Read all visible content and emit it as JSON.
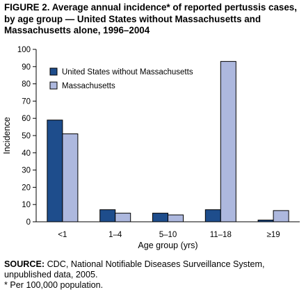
{
  "figure": {
    "title": "FIGURE 2. Average annual incidence* of reported pertussis cases, by age group — United States without Massachusetts and Massachusetts alone, 1996–2004",
    "source_label": "SOURCE:",
    "source_text": "CDC, National Notifiable Diseases Surveillance System, unpublished data, 2005.",
    "footnote": "* Per 100,000 population."
  },
  "chart_data": {
    "type": "bar",
    "categories": [
      "<1",
      "1–4",
      "5–10",
      "11–18",
      "≥19"
    ],
    "series": [
      {
        "name": "United States without Massachusetts",
        "color": "#1e4d8c",
        "values": [
          59,
          7,
          5,
          7,
          1
        ]
      },
      {
        "name": "Massachusetts",
        "color": "#adb8de",
        "values": [
          51,
          5,
          4,
          93,
          6.5
        ]
      }
    ],
    "xlabel": "Age group (yrs)",
    "ylabel": "Incidence",
    "ylim": [
      0,
      100
    ],
    "yticks": [
      0,
      10,
      20,
      30,
      40,
      50,
      60,
      70,
      80,
      90,
      100
    ],
    "grid": false,
    "legend_position": "top-left"
  }
}
